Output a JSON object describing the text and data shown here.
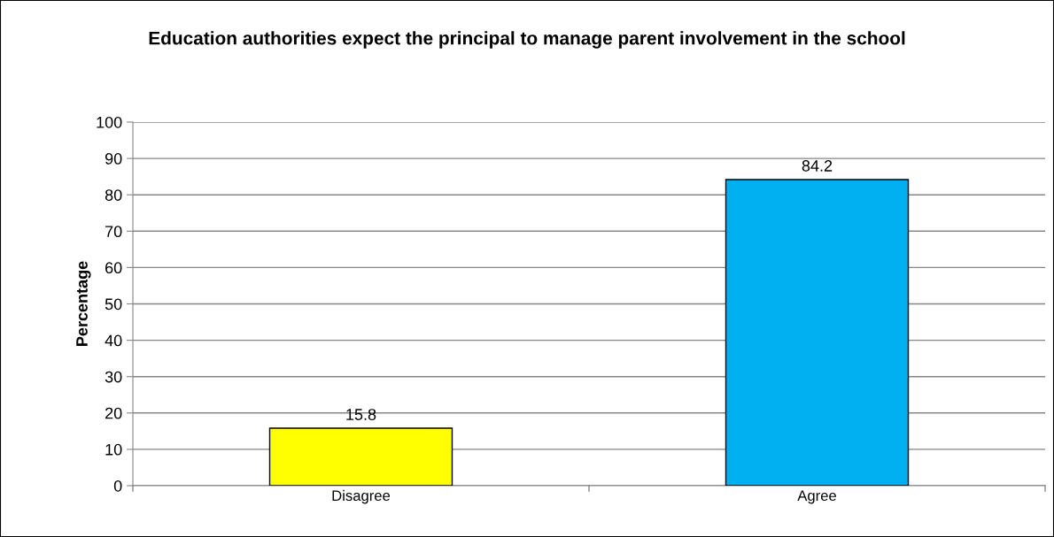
{
  "chart_data": {
    "type": "bar",
    "title": "Education authorities expect the principal to manage parent involvement in the school",
    "ylabel": "Percentage",
    "categories": [
      "Disagree",
      "Agree"
    ],
    "values": [
      15.8,
      84.2
    ],
    "colors": [
      "#ffff00",
      "#00b0f0"
    ],
    "ylim": [
      0,
      100
    ],
    "yticks": [
      0,
      10,
      20,
      30,
      40,
      50,
      60,
      70,
      80,
      90,
      100
    ],
    "grid": "y",
    "data_labels": true,
    "legend": false
  }
}
